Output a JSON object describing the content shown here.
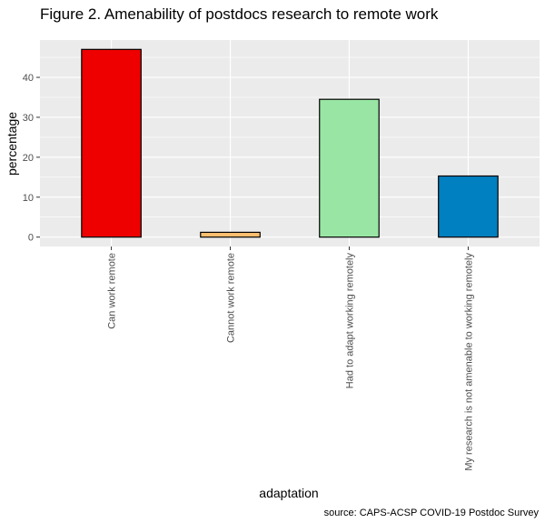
{
  "chart_data": {
    "type": "bar",
    "title": "Figure 2. Amenability of postdocs research to remote work",
    "xlabel": "adaptation",
    "ylabel": "percentage",
    "caption": "source: CAPS-ACSP COVID-19 Postdoc Survey",
    "categories": [
      "Can work remote",
      "Cannot work remote",
      "Had to adapt working remotely",
      "My research is not amenable to working remotely"
    ],
    "values": [
      47,
      1.2,
      34.5,
      15.3
    ],
    "colors": [
      "#ee0000",
      "#fdbf6f",
      "#99e6a4",
      "#0080c0"
    ],
    "bar_outline": "#000000",
    "ylim": [
      -2.35,
      49.35
    ],
    "yticks": [
      0,
      10,
      20,
      30,
      40
    ],
    "ytick_labels": [
      "0",
      "10",
      "20",
      "30",
      "40"
    ],
    "grid": true,
    "panel_background": "#ebebeb",
    "legend": "none"
  }
}
